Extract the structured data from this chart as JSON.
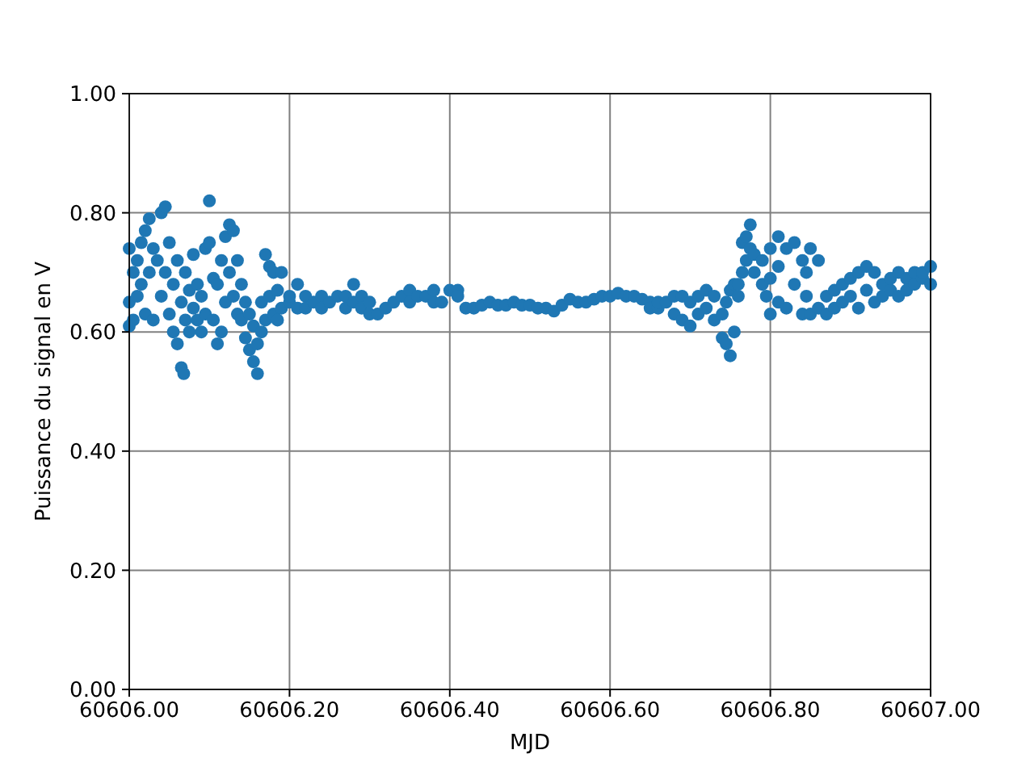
{
  "chart_data": {
    "type": "scatter",
    "xlabel": "MJD",
    "ylabel": "Puissance du signal en V",
    "grid": true,
    "marker": "circle",
    "xlim": [
      60606,
      60607
    ],
    "ylim": [
      0,
      1
    ],
    "xticks": [
      {
        "value": 60606,
        "label": "60606.00"
      },
      {
        "value": 60606.2,
        "label": "60606.20"
      },
      {
        "value": 60606.4,
        "label": "60606.40"
      },
      {
        "value": 60606.6,
        "label": "60606.60"
      },
      {
        "value": 60606.8,
        "label": "60606.80"
      },
      {
        "value": 60607,
        "label": "60607.00"
      }
    ],
    "yticks": [
      {
        "value": 0,
        "label": "0.00"
      },
      {
        "value": 0.2,
        "label": "0.20"
      },
      {
        "value": 0.4,
        "label": "0.40"
      },
      {
        "value": 0.6,
        "label": "0.60"
      },
      {
        "value": 0.8,
        "label": "0.80"
      },
      {
        "value": 1,
        "label": "1.00"
      }
    ],
    "series": [
      {
        "color": "#1f77b4",
        "x": [
          60606,
          60606,
          60606,
          60606.005,
          60606.005,
          60606.01,
          60606.01,
          60606.015,
          60606.015,
          60606.02,
          60606.02,
          60606.025,
          60606.025,
          60606.03,
          60606.03,
          60606.035,
          60606.04,
          60606.04,
          60606.045,
          60606.045,
          60606.05,
          60606.05,
          60606.055,
          60606.055,
          60606.06,
          60606.06,
          60606.065,
          60606.065,
          60606.068,
          60606.07,
          60606.07,
          60606.075,
          60606.075,
          60606.08,
          60606.08,
          60606.085,
          60606.085,
          60606.09,
          60606.09,
          60606.095,
          60606.095,
          60606.1,
          60606.1,
          60606.105,
          60606.105,
          60606.11,
          60606.11,
          60606.115,
          60606.115,
          60606.12,
          60606.12,
          60606.125,
          60606.125,
          60606.13,
          60606.13,
          60606.135,
          60606.135,
          60606.14,
          60606.14,
          60606.145,
          60606.145,
          60606.15,
          60606.15,
          60606.155,
          60606.155,
          60606.16,
          60606.16,
          60606.165,
          60606.165,
          60606.17,
          60606.17,
          60606.175,
          60606.175,
          60606.18,
          60606.18,
          60606.185,
          60606.185,
          60606.19,
          60606.19,
          60606.2,
          60606.2,
          60606.21,
          60606.21,
          60606.22,
          60606.22,
          60606.23,
          60606.24,
          60606.24,
          60606.25,
          60606.26,
          60606.27,
          60606.27,
          60606.28,
          60606.28,
          60606.29,
          60606.29,
          60606.3,
          60606.3,
          60606.31,
          60606.32,
          60606.33,
          60606.34,
          60606.35,
          60606.35,
          60606.36,
          60606.37,
          60606.38,
          60606.38,
          60606.39,
          60606.4,
          60606.41,
          60606.41,
          60606.42,
          60606.43,
          60606.44,
          60606.45,
          60606.46,
          60606.47,
          60606.48,
          60606.49,
          60606.5,
          60606.51,
          60606.52,
          60606.53,
          60606.54,
          60606.55,
          60606.56,
          60606.57,
          60606.58,
          60606.59,
          60606.6,
          60606.61,
          60606.62,
          60606.63,
          60606.64,
          60606.65,
          60606.65,
          60606.66,
          60606.66,
          60606.67,
          60606.68,
          60606.68,
          60606.69,
          60606.69,
          60606.7,
          60606.7,
          60606.71,
          60606.71,
          60606.72,
          60606.72,
          60606.73,
          60606.73,
          60606.74,
          60606.74,
          60606.745,
          60606.745,
          60606.75,
          60606.75,
          60606.755,
          60606.755,
          60606.76,
          60606.76,
          60606.765,
          60606.765,
          60606.77,
          60606.77,
          60606.775,
          60606.775,
          60606.78,
          60606.78,
          60606.79,
          60606.79,
          60606.795,
          60606.8,
          60606.8,
          60606.8,
          60606.81,
          60606.81,
          60606.81,
          60606.82,
          60606.82,
          60606.83,
          60606.83,
          60606.84,
          60606.84,
          60606.845,
          60606.845,
          60606.85,
          60606.85,
          60606.86,
          60606.86,
          60606.87,
          60606.87,
          60606.88,
          60606.88,
          60606.89,
          60606.89,
          60606.9,
          60606.9,
          60606.91,
          60606.91,
          60606.92,
          60606.92,
          60606.93,
          60606.93,
          60606.94,
          60606.94,
          60606.95,
          60606.95,
          60606.96,
          60606.96,
          60606.97,
          60606.97,
          60606.98,
          60606.98,
          60606.99,
          60606.99,
          60607,
          60607
        ],
        "values": [
          0.74,
          0.61,
          0.65,
          0.62,
          0.7,
          0.66,
          0.72,
          0.75,
          0.68,
          0.77,
          0.63,
          0.79,
          0.7,
          0.62,
          0.74,
          0.72,
          0.8,
          0.66,
          0.81,
          0.7,
          0.75,
          0.63,
          0.68,
          0.6,
          0.72,
          0.58,
          0.54,
          0.65,
          0.53,
          0.62,
          0.7,
          0.67,
          0.6,
          0.64,
          0.73,
          0.62,
          0.68,
          0.6,
          0.66,
          0.74,
          0.63,
          0.82,
          0.75,
          0.69,
          0.62,
          0.68,
          0.58,
          0.72,
          0.6,
          0.76,
          0.65,
          0.78,
          0.7,
          0.77,
          0.66,
          0.72,
          0.63,
          0.68,
          0.62,
          0.65,
          0.59,
          0.63,
          0.57,
          0.55,
          0.61,
          0.53,
          0.58,
          0.6,
          0.65,
          0.73,
          0.62,
          0.71,
          0.66,
          0.7,
          0.63,
          0.67,
          0.62,
          0.7,
          0.64,
          0.65,
          0.66,
          0.68,
          0.64,
          0.66,
          0.64,
          0.65,
          0.66,
          0.64,
          0.65,
          0.66,
          0.64,
          0.66,
          0.68,
          0.65,
          0.66,
          0.64,
          0.63,
          0.65,
          0.63,
          0.64,
          0.65,
          0.66,
          0.67,
          0.65,
          0.66,
          0.66,
          0.65,
          0.67,
          0.65,
          0.67,
          0.67,
          0.66,
          0.64,
          0.64,
          0.645,
          0.65,
          0.645,
          0.645,
          0.65,
          0.645,
          0.645,
          0.64,
          0.64,
          0.635,
          0.645,
          0.655,
          0.65,
          0.65,
          0.655,
          0.66,
          0.66,
          0.665,
          0.66,
          0.66,
          0.655,
          0.65,
          0.64,
          0.64,
          0.65,
          0.65,
          0.63,
          0.66,
          0.62,
          0.66,
          0.61,
          0.65,
          0.66,
          0.63,
          0.67,
          0.64,
          0.66,
          0.62,
          0.63,
          0.59,
          0.58,
          0.65,
          0.56,
          0.67,
          0.6,
          0.68,
          0.66,
          0.68,
          0.75,
          0.7,
          0.76,
          0.72,
          0.78,
          0.74,
          0.73,
          0.7,
          0.68,
          0.72,
          0.66,
          0.63,
          0.74,
          0.69,
          0.76,
          0.71,
          0.65,
          0.74,
          0.64,
          0.75,
          0.68,
          0.63,
          0.72,
          0.7,
          0.66,
          0.74,
          0.63,
          0.72,
          0.64,
          0.66,
          0.63,
          0.67,
          0.64,
          0.68,
          0.65,
          0.69,
          0.66,
          0.7,
          0.64,
          0.71,
          0.67,
          0.7,
          0.65,
          0.66,
          0.68,
          0.67,
          0.69,
          0.7,
          0.66,
          0.69,
          0.67,
          0.7,
          0.68,
          0.69,
          0.7,
          0.71,
          0.68
        ]
      }
    ]
  }
}
